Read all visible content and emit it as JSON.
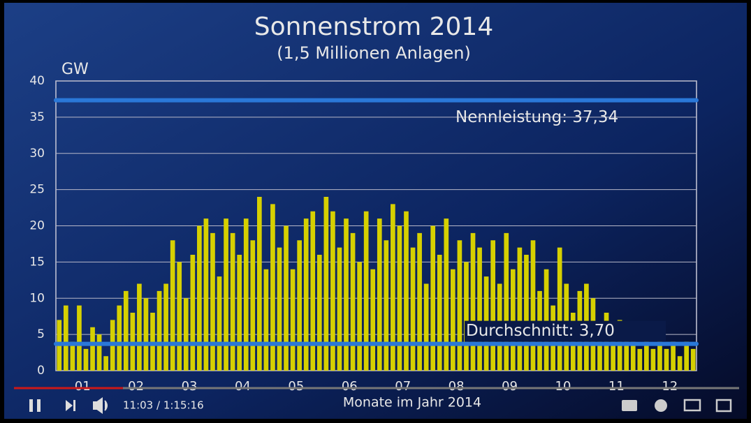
{
  "chart_data": {
    "type": "bar",
    "title": "Sonnenstrom 2014",
    "subtitle": "(1,5 Millionen Anlagen)",
    "ylabel": "GW",
    "xlabel": "Monate im Jahr 2014",
    "xtick_labels": [
      "01",
      "02",
      "03",
      "04",
      "05",
      "06",
      "07",
      "08",
      "09",
      "10",
      "11",
      "12"
    ],
    "values": [
      7,
      9,
      4,
      9,
      3,
      6,
      5,
      2,
      7,
      9,
      11,
      8,
      12,
      10,
      8,
      11,
      12,
      18,
      15,
      10,
      16,
      20,
      21,
      19,
      13,
      21,
      19,
      16,
      21,
      18,
      24,
      14,
      23,
      17,
      20,
      14,
      18,
      21,
      22,
      16,
      24,
      22,
      17,
      21,
      19,
      15,
      22,
      14,
      21,
      18,
      23,
      20,
      22,
      17,
      19,
      12,
      20,
      16,
      21,
      14,
      18,
      15,
      19,
      17,
      13,
      18,
      12,
      19,
      14,
      17,
      16,
      18,
      11,
      14,
      9,
      17,
      12,
      8,
      11,
      12,
      10,
      6,
      8,
      5,
      7,
      5,
      4,
      3,
      4,
      3,
      5,
      3,
      4,
      2,
      4,
      3
    ],
    "color": "#d6d000",
    "ylim": [
      0,
      40
    ],
    "yticks": [
      0,
      5,
      10,
      15,
      20,
      25,
      30,
      35,
      40
    ],
    "grid": true,
    "annotations": [
      {
        "label": "Nennleistung: 37,34",
        "value": 37.34
      },
      {
        "label": "Durchschnitt: 3,70",
        "value": 3.7
      }
    ]
  },
  "player": {
    "time": "11:03 / 1:15:16"
  }
}
